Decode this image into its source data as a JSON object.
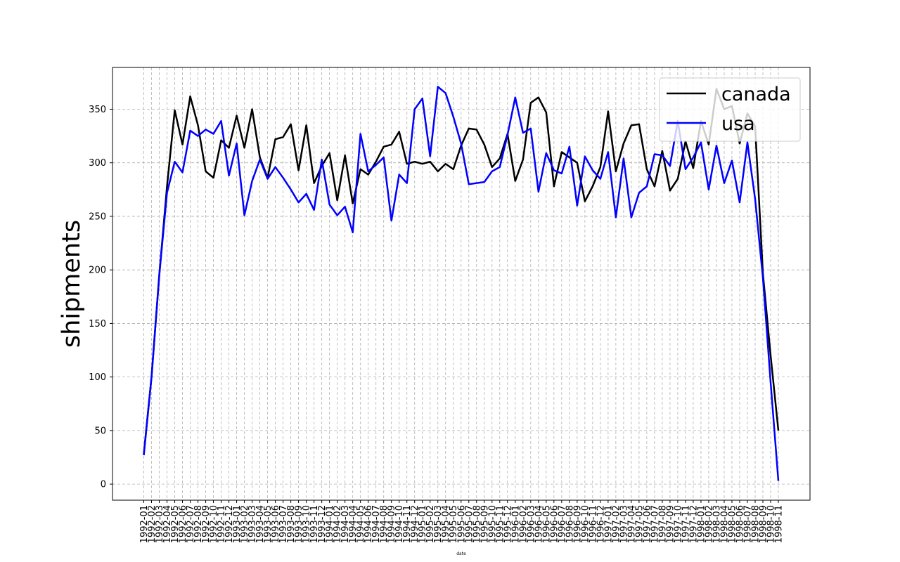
{
  "chart_data": {
    "type": "line",
    "title": "",
    "xlabel": "date",
    "ylabel": "shipments",
    "ylim": [
      -15,
      389
    ],
    "yticks": [
      0,
      50,
      100,
      150,
      200,
      250,
      300,
      350
    ],
    "grid": true,
    "legend_position": "top-right",
    "x": [
      "1992-01",
      "1992-02",
      "1992-03",
      "1992-04",
      "1992-05",
      "1992-06",
      "1992-07",
      "1992-08",
      "1992-09",
      "1992-10",
      "1992-11",
      "1992-12",
      "1993-01",
      "1993-02",
      "1993-03",
      "1993-04",
      "1993-05",
      "1993-06",
      "1993-07",
      "1993-08",
      "1993-09",
      "1993-10",
      "1993-11",
      "1993-12",
      "1994-01",
      "1994-02",
      "1994-03",
      "1994-04",
      "1994-05",
      "1994-06",
      "1994-07",
      "1994-08",
      "1994-09",
      "1994-10",
      "1994-11",
      "1994-12",
      "1995-01",
      "1995-02",
      "1995-03",
      "1995-04",
      "1995-05",
      "1995-06",
      "1995-07",
      "1995-08",
      "1995-09",
      "1995-10",
      "1995-11",
      "1995-12",
      "1996-01",
      "1996-02",
      "1996-03",
      "1996-04",
      "1996-05",
      "1996-06",
      "1996-07",
      "1996-08",
      "1996-09",
      "1996-10",
      "1996-11",
      "1996-12",
      "1997-01",
      "1997-02",
      "1997-03",
      "1997-04",
      "1997-05",
      "1997-06",
      "1997-07",
      "1997-08",
      "1997-09",
      "1997-10",
      "1997-11",
      "1997-12",
      "1998-01",
      "1998-02",
      "1998-03",
      "1998-04",
      "1998-05",
      "1998-06",
      "1998-07",
      "1998-08",
      "1998-09",
      "1998-10",
      "1998-11"
    ],
    "series": [
      {
        "name": "canada",
        "color": "#000000",
        "values": [
          28,
          100,
          195,
          278,
          349,
          317,
          362,
          335,
          292,
          286,
          321,
          314,
          344,
          314,
          350,
          305,
          286,
          322,
          324,
          336,
          293,
          335,
          281,
          297,
          309,
          265,
          307,
          262,
          294,
          289,
          301,
          315,
          317,
          329,
          299,
          301,
          299,
          301,
          292,
          299,
          294,
          316,
          332,
          331,
          317,
          296,
          304,
          327,
          283,
          303,
          356,
          361,
          347,
          278,
          310,
          305,
          300,
          264,
          278,
          296,
          348,
          292,
          318,
          335,
          336,
          294,
          278,
          311,
          274,
          285,
          320,
          295,
          339,
          317,
          369,
          350,
          353,
          318,
          346,
          334,
          197,
          120,
          50
        ]
      },
      {
        "name": "usa",
        "color": "#0000ff",
        "values": [
          27,
          100,
          195,
          272,
          301,
          291,
          330,
          325,
          331,
          327,
          339,
          288,
          318,
          251,
          283,
          303,
          285,
          296,
          286,
          275,
          263,
          271,
          256,
          303,
          261,
          251,
          259,
          235,
          327,
          292,
          298,
          305,
          246,
          289,
          281,
          350,
          360,
          306,
          371,
          365,
          343,
          318,
          280,
          281,
          282,
          292,
          296,
          326,
          361,
          328,
          332,
          273,
          309,
          293,
          290,
          315,
          260,
          306,
          293,
          285,
          310,
          249,
          304,
          249,
          272,
          278,
          308,
          307,
          297,
          339,
          294,
          305,
          319,
          275,
          316,
          281,
          302,
          263,
          319,
          266,
          193,
          95,
          3
        ]
      }
    ]
  }
}
